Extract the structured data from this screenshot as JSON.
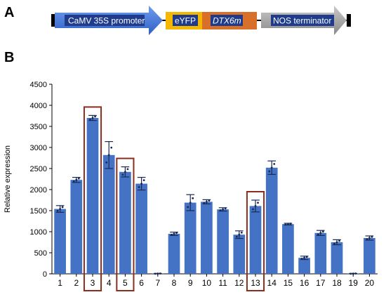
{
  "panels": {
    "a": "A",
    "b": "B"
  },
  "construct": {
    "promoter": "CaMV 35S promoter",
    "reporter": "eYFP",
    "gene": "DTX6m",
    "terminator": "NOS terminator",
    "colors": {
      "promoter": "#3a6fd8",
      "reporter": "#f5b800",
      "gene": "#d9702a",
      "terminator": "#9e9e9e",
      "label_box": "#1f3c8c"
    }
  },
  "chart_data": {
    "type": "bar",
    "ylabel": "Relative expression",
    "xlabel": "",
    "title": "",
    "ylim": [
      0,
      4500
    ],
    "yticks": [
      0,
      500,
      1000,
      1500,
      2000,
      2500,
      3000,
      3500,
      4000,
      4500
    ],
    "categories": [
      "1",
      "2",
      "3",
      "4",
      "5",
      "6",
      "7",
      "8",
      "9",
      "10",
      "11",
      "12",
      "13",
      "14",
      "15",
      "16",
      "17",
      "18",
      "19",
      "20"
    ],
    "values": [
      1540,
      2230,
      3700,
      2820,
      2420,
      2140,
      5,
      950,
      1690,
      1710,
      1530,
      930,
      1610,
      2520,
      1180,
      380,
      970,
      750,
      5,
      850
    ],
    "errors": [
      80,
      60,
      60,
      320,
      120,
      150,
      5,
      40,
      190,
      50,
      40,
      90,
      140,
      160,
      20,
      40,
      60,
      60,
      5,
      50
    ],
    "highlighted": [
      "3",
      "5",
      "13"
    ],
    "bar_color": "#4472c4",
    "highlight_color": "#8b2e1f"
  }
}
